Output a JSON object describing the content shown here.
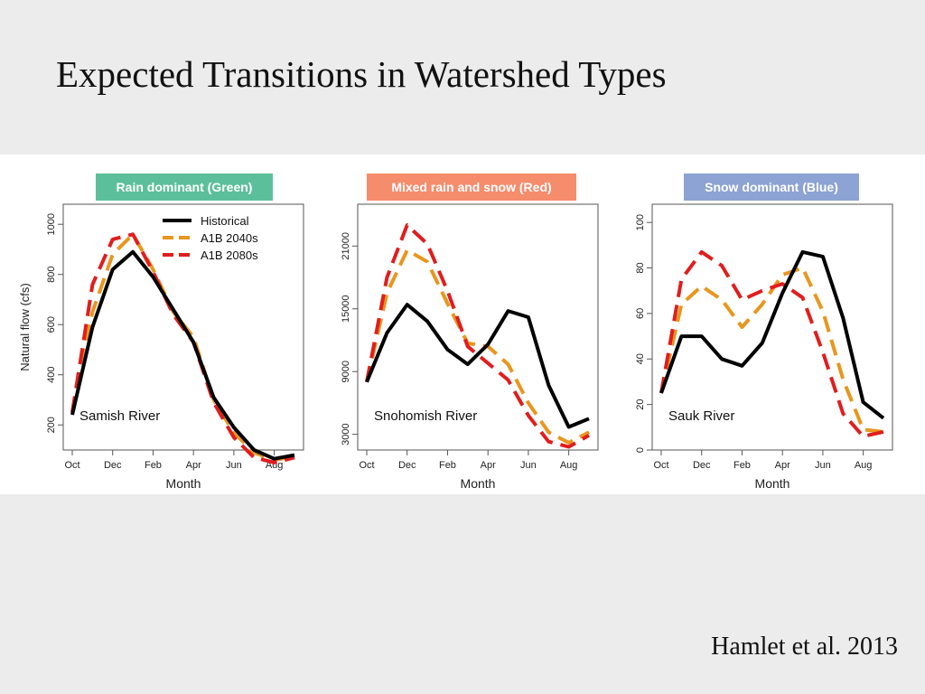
{
  "slide": {
    "title": "Expected Transitions in Watershed Types",
    "citation": "Hamlet et al. 2013"
  },
  "colors": {
    "Historical": "#000000",
    "A1B 2040s": "#e8961e",
    "A1B 2080s": "#e01e1e"
  },
  "shared": {
    "ylabel": "Natural flow (cfs)",
    "xlabel": "Month",
    "month_ticks": [
      "Oct",
      "Dec",
      "Feb",
      "Apr",
      "Jun",
      "Aug"
    ]
  },
  "chart_data": [
    {
      "type": "line",
      "title": "Rain dominant (Green)",
      "title_color": "#5cbf9b",
      "river": "Samish River",
      "xlabel": "Month",
      "ylabel": "Natural flow (cfs)",
      "x": [
        "Oct",
        "Nov",
        "Dec",
        "Jan",
        "Feb",
        "Mar",
        "Apr",
        "May",
        "Jun",
        "Jul",
        "Aug",
        "Sep"
      ],
      "ylim": [
        100,
        1080
      ],
      "yticks": [
        200,
        400,
        600,
        800,
        1000
      ],
      "legend": "top-right",
      "series": [
        {
          "name": "Historical",
          "style": "solid",
          "values": [
            240,
            590,
            820,
            890,
            790,
            660,
            530,
            310,
            190,
            100,
            65,
            80
          ]
        },
        {
          "name": "A1B 2040s",
          "style": "dashed",
          "values": [
            250,
            650,
            880,
            960,
            820,
            650,
            550,
            300,
            170,
            90,
            60,
            75
          ]
        },
        {
          "name": "A1B 2080s",
          "style": "dashed",
          "values": [
            250,
            760,
            940,
            960,
            810,
            640,
            530,
            290,
            150,
            70,
            50,
            70
          ]
        }
      ]
    },
    {
      "type": "line",
      "title": "Mixed rain and snow (Red)",
      "title_color": "#f58c6c",
      "river": "Snohomish River",
      "xlabel": "Month",
      "ylabel": "",
      "x": [
        "Oct",
        "Nov",
        "Dec",
        "Jan",
        "Feb",
        "Mar",
        "Apr",
        "May",
        "Jun",
        "Jul",
        "Aug",
        "Sep"
      ],
      "ylim": [
        1500,
        25000
      ],
      "yticks": [
        3000,
        9000,
        15000,
        21000
      ],
      "legend": "none",
      "series": [
        {
          "name": "Historical",
          "style": "solid",
          "values": [
            8000,
            12700,
            15400,
            13800,
            11100,
            9700,
            11600,
            14800,
            14200,
            7700,
            3700,
            4500
          ]
        },
        {
          "name": "A1B 2040s",
          "style": "dashed",
          "values": [
            8000,
            16500,
            20600,
            19500,
            15500,
            11700,
            11400,
            9700,
            6000,
            3200,
            2200,
            3200
          ]
        },
        {
          "name": "A1B 2080s",
          "style": "dashed",
          "values": [
            8000,
            18000,
            23000,
            21200,
            16700,
            11400,
            9800,
            8200,
            4800,
            2300,
            1800,
            2900
          ]
        }
      ]
    },
    {
      "type": "line",
      "title": "Snow dominant (Blue)",
      "title_color": "#8ca3d3",
      "river": "Sauk River",
      "xlabel": "Month",
      "ylabel": "",
      "x": [
        "Oct",
        "Nov",
        "Dec",
        "Jan",
        "Feb",
        "Mar",
        "Apr",
        "May",
        "Jun",
        "Jul",
        "Aug",
        "Sep"
      ],
      "ylim": [
        0,
        108
      ],
      "yticks": [
        0,
        20,
        40,
        60,
        80,
        100
      ],
      "legend": "none",
      "series": [
        {
          "name": "Historical",
          "style": "solid",
          "values": [
            25,
            50,
            50,
            40,
            37,
            47,
            69,
            87,
            85,
            58,
            21,
            14
          ]
        },
        {
          "name": "A1B 2040s",
          "style": "dashed",
          "values": [
            25,
            64,
            72,
            66,
            54,
            64,
            77,
            80,
            61,
            31,
            9,
            8
          ]
        },
        {
          "name": "A1B 2080s",
          "style": "dashed",
          "values": [
            25,
            75,
            87,
            81,
            66,
            70,
            73,
            67,
            43,
            16,
            6,
            8
          ]
        }
      ]
    }
  ]
}
